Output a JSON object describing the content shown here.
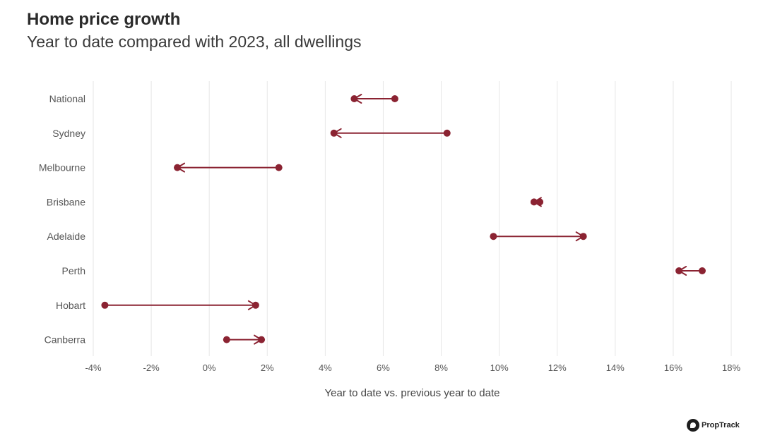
{
  "title": "Home price growth",
  "subtitle": "Year to date compared with 2023, all dwellings",
  "brand": "PropTrack",
  "colors": {
    "accent": "#8b2332",
    "grid": "#e6e6e6",
    "label": "#555555"
  },
  "chart_data": {
    "type": "dumbbell-arrow",
    "xlabel": "Year to date vs. previous year to date",
    "ylabel": "",
    "xlim": [
      -4,
      18
    ],
    "x_ticks": [
      -4,
      -2,
      0,
      2,
      4,
      6,
      8,
      10,
      12,
      14,
      16,
      18
    ],
    "x_tick_labels": [
      "-4%",
      "-2%",
      "0%",
      "2%",
      "4%",
      "6%",
      "8%",
      "10%",
      "12%",
      "14%",
      "16%",
      "18%"
    ],
    "grid": true,
    "categories": [
      "National",
      "Sydney",
      "Melbourne",
      "Brisbane",
      "Adelaide",
      "Perth",
      "Hobart",
      "Canberra"
    ],
    "from_values": [
      6.4,
      8.2,
      2.4,
      11.4,
      9.8,
      17.0,
      -3.6,
      0.6
    ],
    "to_values": [
      5.0,
      4.3,
      -1.1,
      11.2,
      12.9,
      16.2,
      1.6,
      1.8
    ]
  }
}
